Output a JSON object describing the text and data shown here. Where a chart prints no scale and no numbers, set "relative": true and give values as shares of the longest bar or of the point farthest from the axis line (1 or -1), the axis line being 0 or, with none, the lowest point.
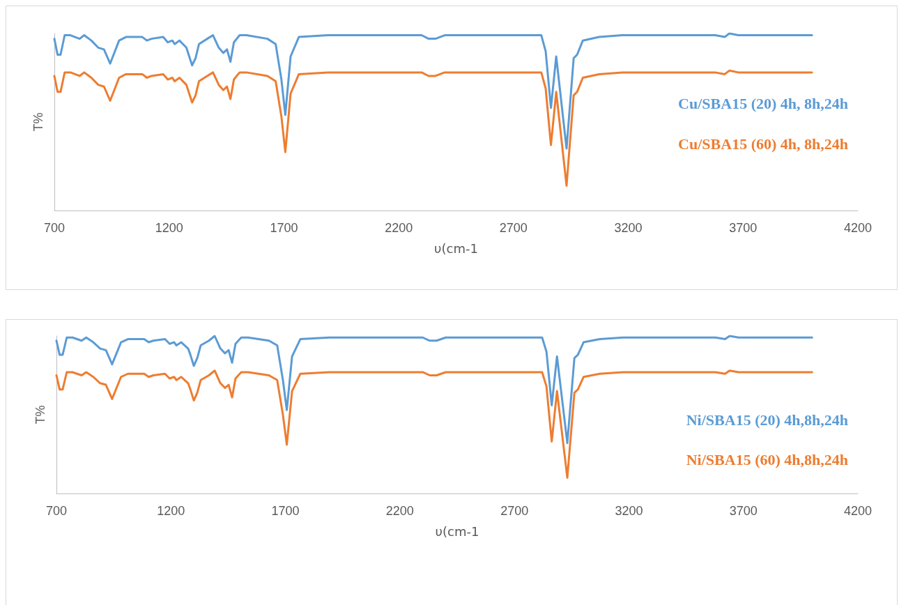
{
  "chart_data": [
    {
      "type": "line",
      "relative": true,
      "ylabel": "T%",
      "xlabel": "υ(cm-1",
      "xlim": [
        700,
        4200
      ],
      "xticks": [
        700,
        1200,
        1700,
        2200,
        2700,
        3200,
        3700,
        4200
      ],
      "grid": false,
      "legend": false,
      "marker": "none",
      "line_style": "solid",
      "x": [
        700,
        714,
        727,
        745,
        770,
        810,
        830,
        861,
        891,
        916,
        943,
        982,
        1012,
        1083,
        1103,
        1123,
        1174,
        1194,
        1214,
        1224,
        1245,
        1260,
        1275,
        1285,
        1300,
        1315,
        1330,
        1366,
        1391,
        1416,
        1436,
        1452,
        1467,
        1482,
        1507,
        1537,
        1628,
        1664,
        1689,
        1706,
        1729,
        1765,
        1891,
        2300,
        2330,
        2360,
        2400,
        2821,
        2840,
        2863,
        2886,
        2931,
        2962,
        2977,
        3002,
        3073,
        3174,
        3578,
        3620,
        3640,
        3679,
        4000
      ],
      "series": [
        {
          "name": "Cu/SBA15 (20) 4h, 8h,24h",
          "color": "#5b9bd5",
          "values": [
            0.97,
            0.88,
            0.88,
            0.99,
            0.99,
            0.97,
            0.99,
            0.96,
            0.92,
            0.91,
            0.83,
            0.96,
            0.98,
            0.98,
            0.96,
            0.97,
            0.98,
            0.95,
            0.96,
            0.94,
            0.96,
            0.94,
            0.92,
            0.88,
            0.82,
            0.86,
            0.94,
            0.97,
            0.99,
            0.92,
            0.89,
            0.91,
            0.84,
            0.95,
            0.99,
            0.99,
            0.97,
            0.94,
            0.74,
            0.54,
            0.87,
            0.98,
            0.99,
            0.99,
            0.97,
            0.97,
            0.99,
            0.99,
            0.9,
            0.58,
            0.87,
            0.35,
            0.86,
            0.88,
            0.96,
            0.98,
            0.99,
            0.99,
            0.98,
            1.0,
            0.99,
            0.99
          ]
        },
        {
          "name": "Cu/SBA15 (60) 4h, 8h,24h",
          "color": "#ed7d31",
          "values": [
            0.76,
            0.67,
            0.67,
            0.78,
            0.78,
            0.76,
            0.78,
            0.75,
            0.71,
            0.7,
            0.62,
            0.75,
            0.77,
            0.77,
            0.75,
            0.76,
            0.77,
            0.74,
            0.75,
            0.73,
            0.75,
            0.73,
            0.71,
            0.67,
            0.61,
            0.65,
            0.73,
            0.76,
            0.78,
            0.71,
            0.68,
            0.7,
            0.63,
            0.74,
            0.78,
            0.78,
            0.76,
            0.73,
            0.53,
            0.33,
            0.66,
            0.77,
            0.78,
            0.78,
            0.76,
            0.76,
            0.78,
            0.78,
            0.69,
            0.37,
            0.67,
            0.14,
            0.65,
            0.67,
            0.75,
            0.77,
            0.78,
            0.78,
            0.77,
            0.79,
            0.78,
            0.78
          ]
        }
      ]
    },
    {
      "type": "line",
      "relative": true,
      "ylabel": "T%",
      "xlabel": "υ(cm-1",
      "xlim": [
        700,
        4200
      ],
      "xticks": [
        700,
        1200,
        1700,
        2200,
        2700,
        3200,
        3700,
        4200
      ],
      "grid": false,
      "legend": false,
      "marker": "none",
      "line_style": "solid",
      "x": [
        700,
        714,
        727,
        745,
        770,
        810,
        830,
        861,
        891,
        916,
        943,
        982,
        1012,
        1083,
        1103,
        1123,
        1174,
        1194,
        1214,
        1224,
        1245,
        1260,
        1275,
        1285,
        1300,
        1315,
        1330,
        1366,
        1391,
        1416,
        1436,
        1452,
        1467,
        1482,
        1507,
        1537,
        1628,
        1664,
        1689,
        1706,
        1729,
        1765,
        1891,
        2300,
        2330,
        2360,
        2400,
        2821,
        2840,
        2863,
        2886,
        2931,
        2962,
        2977,
        3002,
        3073,
        3174,
        3578,
        3620,
        3640,
        3679,
        4000
      ],
      "series": [
        {
          "name": "Ni/SBA15 (20) 4h,8h,24h",
          "color": "#5b9bd5",
          "values": [
            0.97,
            0.88,
            0.88,
            0.99,
            0.99,
            0.97,
            0.99,
            0.96,
            0.92,
            0.91,
            0.82,
            0.96,
            0.98,
            0.98,
            0.96,
            0.97,
            0.98,
            0.95,
            0.96,
            0.94,
            0.96,
            0.94,
            0.92,
            0.88,
            0.81,
            0.86,
            0.94,
            0.97,
            1.0,
            0.92,
            0.89,
            0.91,
            0.83,
            0.95,
            0.99,
            0.99,
            0.97,
            0.94,
            0.72,
            0.53,
            0.87,
            0.98,
            0.99,
            0.99,
            0.97,
            0.97,
            0.99,
            0.99,
            0.9,
            0.56,
            0.87,
            0.32,
            0.86,
            0.88,
            0.96,
            0.98,
            0.99,
            0.99,
            0.98,
            1.0,
            0.99,
            0.99
          ]
        },
        {
          "name": "Ni/SBA15 (60) 4h,8h,24h",
          "color": "#ed7d31",
          "values": [
            0.75,
            0.66,
            0.66,
            0.77,
            0.77,
            0.75,
            0.77,
            0.74,
            0.7,
            0.69,
            0.6,
            0.74,
            0.76,
            0.76,
            0.74,
            0.75,
            0.76,
            0.73,
            0.74,
            0.72,
            0.74,
            0.72,
            0.7,
            0.66,
            0.59,
            0.64,
            0.72,
            0.75,
            0.78,
            0.7,
            0.67,
            0.69,
            0.61,
            0.73,
            0.77,
            0.77,
            0.75,
            0.72,
            0.5,
            0.31,
            0.65,
            0.76,
            0.77,
            0.77,
            0.75,
            0.75,
            0.77,
            0.77,
            0.68,
            0.33,
            0.65,
            0.1,
            0.64,
            0.66,
            0.74,
            0.76,
            0.77,
            0.77,
            0.76,
            0.78,
            0.77,
            0.77
          ]
        }
      ]
    }
  ]
}
